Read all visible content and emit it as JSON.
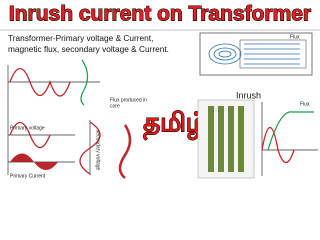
{
  "header": {
    "title": "Inrush current on Transformer"
  },
  "description": [
    "Transformer-Primary voltage & Current,",
    "magnetic flux, secondary voltage & Current."
  ],
  "labels": {
    "flux_core": [
      "Flux produced in",
      "core"
    ],
    "primary_voltage": "Primary voltage",
    "primary_current": "Primary Current",
    "secondary_voltage": "secondary voltage",
    "flux": "Flux",
    "graph_flux": "Flux"
  },
  "language": "தமிழ்",
  "inrush": "Inrush"
}
